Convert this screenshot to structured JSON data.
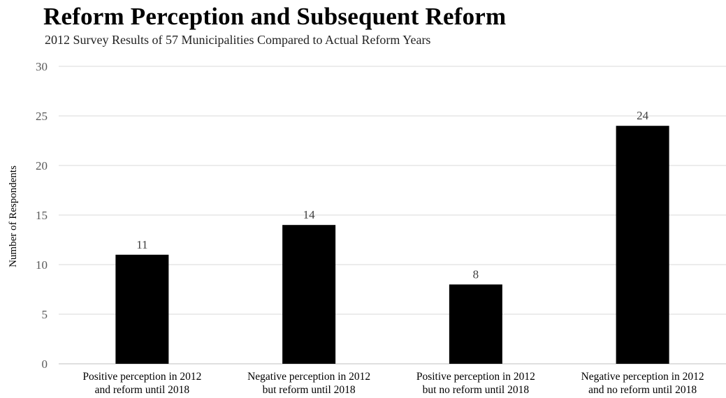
{
  "chart_data": {
    "type": "bar",
    "title": "Reform Perception and Subsequent Reform",
    "subtitle": "2012 Survey Results of 57 Municipalities Compared to Actual Reform Years",
    "xlabel": "",
    "ylabel": "Number of Respondents",
    "ylim": [
      0,
      30
    ],
    "yticks": [
      0,
      5,
      10,
      15,
      20,
      25,
      30
    ],
    "grid": true,
    "legend": "none",
    "bar_color": "#000000",
    "categories": [
      [
        "Positive perception  in 2012",
        "and reform until 2018"
      ],
      [
        "Negative perception  in 2012",
        "but reform until 2018"
      ],
      [
        "Positive perception  in 2012",
        "but no reform until 2018"
      ],
      [
        "Negative perception  in 2012",
        "and no reform until 2018"
      ]
    ],
    "values": [
      11,
      14,
      8,
      24
    ],
    "data_labels": [
      "11",
      "14",
      "8",
      "24"
    ]
  }
}
